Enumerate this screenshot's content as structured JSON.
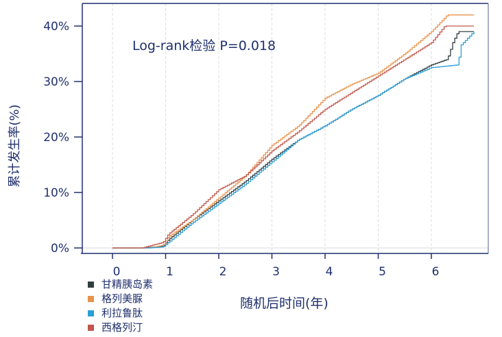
{
  "chart_data": {
    "type": "line",
    "xlabel": "随机后时间(年)",
    "ylabel": "累计发生率(%)",
    "annotation": "Log-rank检验 P=0.018",
    "xlim": [
      -0.6,
      7.1
    ],
    "ylim": [
      -1,
      44
    ],
    "xticks": [
      "0",
      "1",
      "2",
      "3",
      "4",
      "5",
      "6"
    ],
    "yticks": [
      "0%",
      "10%",
      "20%",
      "30%",
      "40%"
    ],
    "grid": "vertical dashed",
    "legend": "bottom-left",
    "series": [
      {
        "name": "甘精胰岛素",
        "color": "#2f3d3f",
        "x": [
          0,
          0.6,
          0.95,
          1.05,
          1.5,
          2,
          2.5,
          3,
          3.5,
          4,
          4.5,
          5,
          5.5,
          6,
          6.3,
          6.4,
          6.5,
          6.8
        ],
        "y": [
          0,
          0,
          0.3,
          1.5,
          5,
          8.5,
          12,
          16,
          19.5,
          22,
          25,
          27.5,
          30.5,
          33,
          34,
          37,
          39,
          39
        ]
      },
      {
        "name": "格列美脲",
        "color": "#e8924a",
        "x": [
          0,
          0.7,
          0.95,
          1.05,
          1.5,
          2,
          2.5,
          3,
          3.5,
          4,
          4.5,
          5,
          5.5,
          6,
          6.3,
          6.8
        ],
        "y": [
          0,
          0,
          0.5,
          2,
          5,
          9,
          13,
          18.5,
          22,
          27,
          29.5,
          31.5,
          35,
          39,
          42,
          42
        ]
      },
      {
        "name": "利拉鲁肽",
        "color": "#2a9fd8",
        "x": [
          0,
          0.7,
          0.95,
          1.05,
          1.5,
          2,
          2.5,
          3,
          3.5,
          4,
          4.5,
          5,
          5.5,
          6,
          6.5,
          6.55,
          6.7,
          6.8
        ],
        "y": [
          0,
          0,
          0.2,
          1,
          4.5,
          8,
          11.5,
          15.5,
          19.5,
          22,
          25,
          27.5,
          30.5,
          32.5,
          33,
          36.5,
          38,
          39
        ]
      },
      {
        "name": "西格列汀",
        "color": "#c0574a",
        "x": [
          0,
          0.55,
          0.95,
          1.05,
          1.5,
          2,
          2.5,
          3,
          3.5,
          4,
          4.5,
          5,
          5.5,
          6,
          6.25,
          6.8
        ],
        "y": [
          0,
          0,
          1,
          2.5,
          6,
          10.5,
          13,
          17.5,
          21,
          25,
          28,
          31,
          34,
          37,
          40,
          40
        ]
      }
    ]
  }
}
